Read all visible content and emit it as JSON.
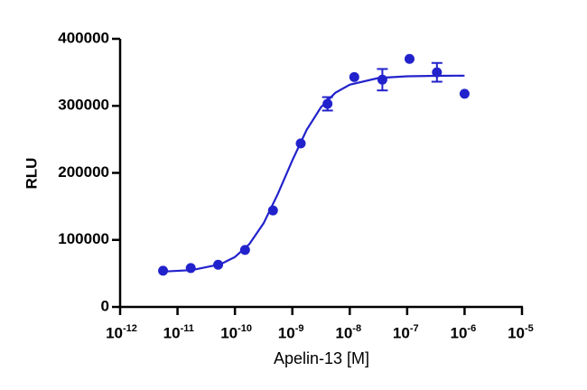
{
  "chart_data": {
    "type": "scatter",
    "x_label": "Apelin-13 [M]",
    "y_label": "RLU",
    "log_x": true,
    "color": "#2222cc",
    "xlim": [
      1e-12,
      1e-05
    ],
    "xticks": [
      {
        "value": 1e-12,
        "label": "10",
        "exponent": "-12"
      },
      {
        "value": 1e-11,
        "label": "10",
        "exponent": "-11"
      },
      {
        "value": 1e-10,
        "label": "10",
        "exponent": "-10"
      },
      {
        "value": 1e-09,
        "label": "10",
        "exponent": "-9"
      },
      {
        "value": 1e-08,
        "label": "10",
        "exponent": "-8"
      },
      {
        "value": 1e-07,
        "label": "10",
        "exponent": "-7"
      },
      {
        "value": 1e-06,
        "label": "10",
        "exponent": "-6"
      },
      {
        "value": 1e-05,
        "label": "10",
        "exponent": "-5"
      }
    ],
    "ylim": [
      0,
      400000
    ],
    "yticks": [
      0,
      100000,
      200000,
      300000,
      400000
    ],
    "x": [
      5.6e-12,
      1.7e-11,
      5.1e-11,
      1.5e-10,
      4.6e-10,
      1.4e-09,
      4.1e-09,
      1.2e-08,
      3.7e-08,
      1.1e-07,
      3.3e-07,
      1e-06
    ],
    "values": [
      54000,
      58000,
      63000,
      85000,
      144000,
      244000,
      303000,
      343000,
      339000,
      370000,
      350000,
      318000
    ],
    "errors": [
      null,
      null,
      null,
      null,
      null,
      null,
      10000,
      null,
      16000,
      null,
      14000,
      null
    ],
    "fit": {
      "x": [
        5.6e-12,
        1.78e-11,
        5.6e-11,
        1e-10,
        1.78e-10,
        3.16e-10,
        5.6e-10,
        1e-09,
        1.78e-09,
        3.16e-09,
        5.6e-09,
        1e-08,
        3.16e-08,
        1e-07,
        3.16e-07,
        1e-06
      ],
      "values": [
        52800,
        55000,
        63700,
        74500,
        93700,
        124900,
        168700,
        218600,
        264300,
        298100,
        319500,
        331600,
        341500,
        344100,
        344800,
        345000
      ]
    }
  }
}
